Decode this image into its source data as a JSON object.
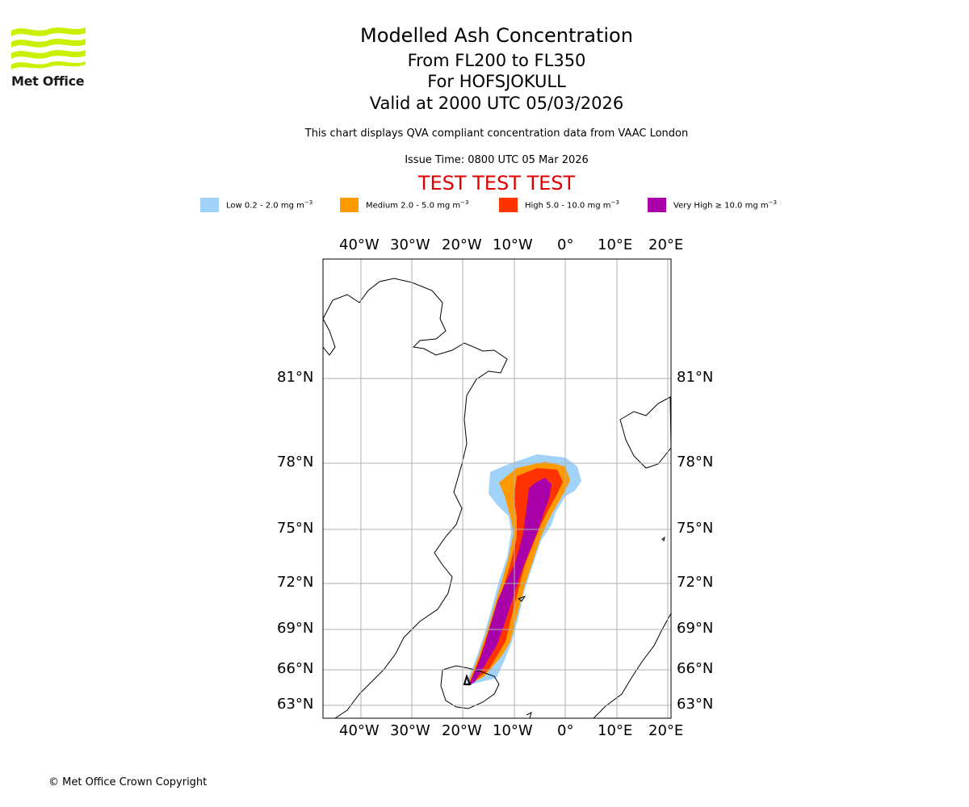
{
  "branding": {
    "logo_text": "Met Office",
    "copyright": "© Met Office Crown Copyright"
  },
  "header": {
    "title": "Modelled Ash Concentration",
    "level_range": "From FL200 to FL350",
    "volcano": "For HOFSJOKULL",
    "valid_time": "Valid at 2000 UTC 05/03/2026",
    "description": "This chart displays QVA compliant concentration data from VAAC London",
    "issue_time": "Issue Time: 0800 UTC 05 Mar 2026",
    "test_banner": "TEST TEST TEST",
    "test_color": "#dd0000"
  },
  "legend": [
    {
      "label": "Low 0.2 - 2.0 mg m",
      "color": "#a0d2fa"
    },
    {
      "label": "Medium 2.0 - 5.0 mg m",
      "color": "#ff9900"
    },
    {
      "label": "High 5.0 - 10.0 mg m",
      "color": "#ff3300"
    },
    {
      "label": "Very High  ≥  10.0 mg m",
      "color": "#aa00aa"
    }
  ],
  "legend_unit_exponent": "−3",
  "map": {
    "lon_labels": [
      "40°W",
      "30°W",
      "20°W",
      "10°W",
      "0°",
      "10°E",
      "20°E"
    ],
    "lat_labels": [
      "81°N",
      "78°N",
      "75°N",
      "72°N",
      "69°N",
      "66°N",
      "63°N"
    ]
  }
}
